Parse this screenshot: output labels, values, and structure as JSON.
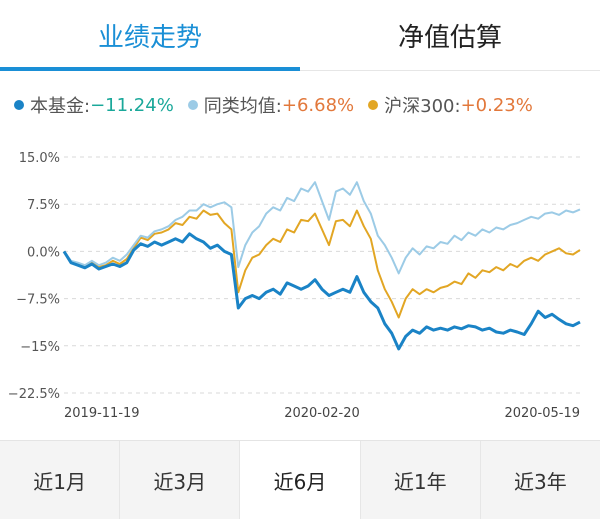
{
  "tabs": [
    {
      "label": "业绩走势",
      "active": true
    },
    {
      "label": "净值估算",
      "active": false
    }
  ],
  "colors": {
    "fund": "#1a83c6",
    "peer": "#9ccbe6",
    "index": "#e2a624",
    "accent": "#1a8fd6",
    "positive": "#e2783b",
    "negative": "#1aa89a"
  },
  "legend": [
    {
      "name": "本基金:",
      "value": "−11.24%",
      "color": "#1a83c6",
      "value_color": "#1aa89a"
    },
    {
      "name": "同类均值:",
      "value": "+6.68%",
      "color": "#9ccbe6",
      "value_color": "#e2783b"
    },
    {
      "name": "沪深300:",
      "value": "+0.23%",
      "color": "#e2a624",
      "value_color": "#e2783b"
    }
  ],
  "range_buttons": [
    {
      "label": "近1月",
      "active": false
    },
    {
      "label": "近3月",
      "active": false
    },
    {
      "label": "近6月",
      "active": true
    },
    {
      "label": "近1年",
      "active": false
    },
    {
      "label": "近3年",
      "active": false
    }
  ],
  "chart_data": {
    "type": "line",
    "y_ticks": [
      "15.0%",
      "7.5%",
      "0.0%",
      "−7.5%",
      "−15%",
      "−22.5%"
    ],
    "y_tick_values": [
      15,
      7.5,
      0,
      -7.5,
      -15,
      -22.5
    ],
    "ylim": [
      -22.5,
      15
    ],
    "x_ticks": [
      "2019-11-19",
      "2020-02-20",
      "2020-05-19"
    ],
    "x_tick_positions": [
      0,
      0.5,
      1
    ],
    "grid": "horizontal dashed",
    "series": [
      {
        "name": "沪深300",
        "color": "#e2a624",
        "values": [
          0,
          -1.8,
          -2.0,
          -2.5,
          -1.8,
          -2.5,
          -2.2,
          -1.5,
          -2.0,
          -1.2,
          0.5,
          2.2,
          1.8,
          2.8,
          3.0,
          3.5,
          4.5,
          4.2,
          5.5,
          5.2,
          6.5,
          5.8,
          6.0,
          4.5,
          3.5,
          -6.5,
          -3.0,
          -1.0,
          -0.5,
          1.0,
          2.0,
          1.5,
          3.5,
          3.0,
          5.0,
          4.8,
          6.0,
          3.5,
          1.0,
          4.8,
          5.0,
          4.0,
          6.5,
          4.0,
          2.0,
          -3.0,
          -6.0,
          -8.0,
          -10.5,
          -7.5,
          -6.0,
          -6.8,
          -6.0,
          -6.5,
          -5.8,
          -5.5,
          -4.8,
          -5.2,
          -3.5,
          -4.2,
          -3.0,
          -3.3,
          -2.5,
          -3.0,
          -2.0,
          -2.5,
          -1.5,
          -1.0,
          -1.5,
          -0.5,
          0,
          0.5,
          -0.3,
          -0.5,
          0.23
        ]
      },
      {
        "name": "同类均值",
        "color": "#9ccbe6",
        "values": [
          0,
          -1.5,
          -1.8,
          -2.2,
          -1.5,
          -2.2,
          -1.8,
          -1.0,
          -1.5,
          -0.5,
          1.0,
          2.5,
          2.2,
          3.2,
          3.5,
          4.0,
          5.0,
          5.5,
          6.5,
          6.5,
          7.5,
          7.0,
          7.5,
          7.8,
          7.0,
          -2.5,
          1.0,
          3.0,
          4.0,
          6.0,
          7.0,
          6.5,
          8.5,
          8.0,
          10.0,
          9.5,
          11.0,
          8.0,
          5.0,
          9.5,
          10.0,
          9.0,
          11.0,
          8.0,
          6.0,
          2.5,
          1.0,
          -1.0,
          -3.5,
          -1.0,
          0.5,
          -0.5,
          0.8,
          0.5,
          1.5,
          1.2,
          2.5,
          1.8,
          3.0,
          2.5,
          3.5,
          3.0,
          3.8,
          3.5,
          4.2,
          4.5,
          5.0,
          5.5,
          5.2,
          6.0,
          6.2,
          5.8,
          6.5,
          6.2,
          6.68
        ]
      },
      {
        "name": "本基金",
        "color": "#1a83c6",
        "values": [
          0,
          -1.8,
          -2.2,
          -2.6,
          -2.0,
          -2.8,
          -2.4,
          -2.0,
          -2.4,
          -1.8,
          0.2,
          1.2,
          0.8,
          1.5,
          1.0,
          1.5,
          2.0,
          1.5,
          2.8,
          2.0,
          1.5,
          0.5,
          1.0,
          0.0,
          -0.5,
          -9.0,
          -7.5,
          -7.0,
          -7.5,
          -6.5,
          -6.0,
          -6.8,
          -5.0,
          -5.5,
          -6.0,
          -5.5,
          -4.5,
          -6.0,
          -7.0,
          -6.5,
          -6.0,
          -6.5,
          -4.0,
          -6.5,
          -8.0,
          -9.0,
          -11.5,
          -13.0,
          -15.5,
          -13.5,
          -12.5,
          -13.0,
          -12.0,
          -12.5,
          -12.2,
          -12.5,
          -12.0,
          -12.3,
          -11.8,
          -12.0,
          -12.5,
          -12.2,
          -12.8,
          -13.0,
          -12.5,
          -12.8,
          -13.2,
          -11.5,
          -9.5,
          -10.5,
          -10.0,
          -10.8,
          -11.5,
          -11.8,
          -11.24
        ]
      }
    ]
  }
}
